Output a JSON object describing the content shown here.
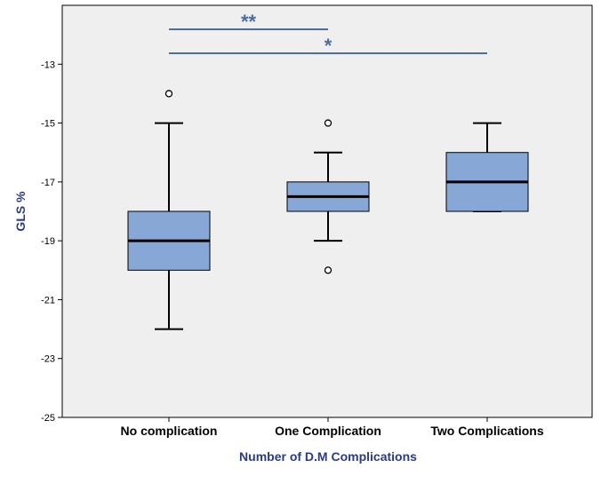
{
  "chart_data": {
    "type": "boxplot",
    "title": "",
    "xlabel": "Number of D.M Complications",
    "ylabel": "GLS %",
    "ylim": [
      -25,
      -11
    ],
    "yticks": [
      -13,
      -15,
      -17,
      -19,
      -21,
      -23,
      -25
    ],
    "categories": [
      "No complication",
      "One Complication",
      "Two Complications"
    ],
    "boxes": [
      {
        "category": "No complication",
        "whisker_low": -22,
        "q1": -20,
        "median": -19,
        "q3": -18,
        "whisker_high": -15,
        "outliers": [
          -14
        ]
      },
      {
        "category": "One Complication",
        "whisker_low": -19,
        "q1": -18,
        "median": -17.5,
        "q3": -17,
        "whisker_high": -16,
        "outliers": [
          -15,
          -20
        ]
      },
      {
        "category": "Two Complications",
        "whisker_low": -18,
        "q1": -18,
        "median": -17,
        "q3": -16,
        "whisker_high": -15,
        "outliers": []
      }
    ],
    "significance": [
      {
        "label": "**",
        "from": "No complication",
        "to": "One Complication"
      },
      {
        "label": "*",
        "from": "No complication",
        "to": "Two Complications"
      }
    ]
  },
  "colors": {
    "plot_bg": "#efefef",
    "box_fill": "#87a8d6",
    "axis_title": "#2b3b82",
    "sig_line": "#4a6f9a"
  }
}
